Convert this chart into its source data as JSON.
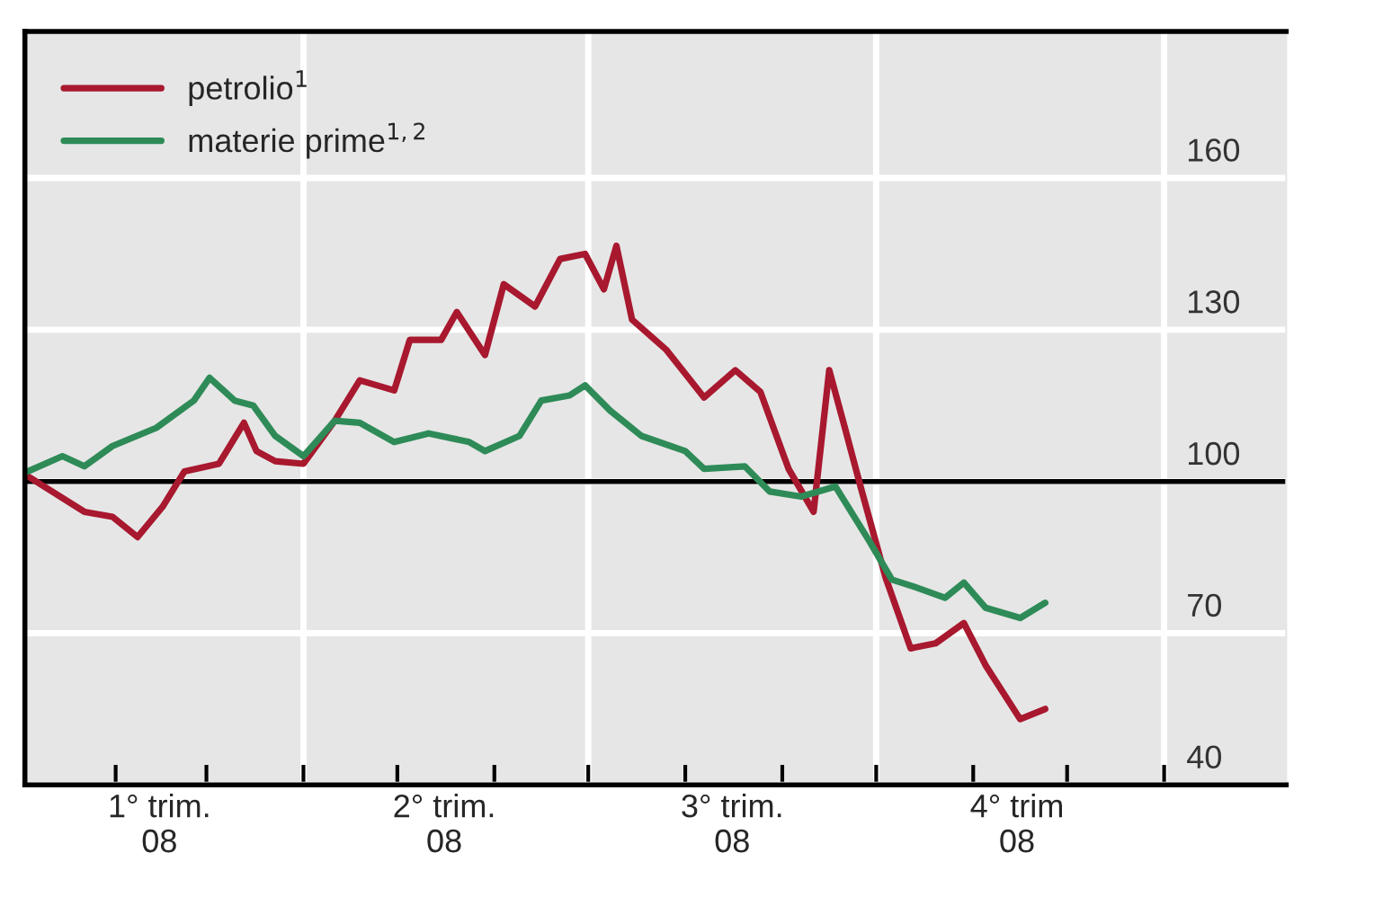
{
  "chart_data": {
    "type": "line",
    "series": [
      {
        "name": "petrolio$^{1}$",
        "color": "#a8182e",
        "x": [
          "2008-01-04",
          "2008-01-22",
          "2008-01-31",
          "2008-02-08",
          "2008-02-16",
          "2008-02-23",
          "2008-03-05",
          "2008-03-13",
          "2008-03-17",
          "2008-03-23",
          "2008-04-01",
          "2008-04-11",
          "2008-04-19",
          "2008-04-30",
          "2008-05-05",
          "2008-05-15",
          "2008-05-20",
          "2008-05-29",
          "2008-06-04",
          "2008-06-14",
          "2008-06-22",
          "2008-06-30",
          "2008-07-06",
          "2008-07-10",
          "2008-07-15",
          "2008-07-26",
          "2008-08-07",
          "2008-08-17",
          "2008-08-25",
          "2008-09-03",
          "2008-09-11",
          "2008-09-16",
          "2008-09-21",
          "2008-09-26",
          "2008-10-04",
          "2008-10-12",
          "2008-10-20",
          "2008-10-29",
          "2008-11-05",
          "2008-11-16",
          "2008-11-24"
        ],
        "values": [
          101,
          94,
          93,
          89,
          95,
          102,
          103.5,
          111.6,
          106,
          104,
          103.5,
          112,
          120,
          118,
          128,
          128,
          133.5,
          125,
          139,
          134.6,
          144,
          145,
          138,
          146.6,
          132,
          126,
          116.6,
          122,
          117.7,
          102.5,
          94,
          122,
          110.6,
          99,
          81,
          67,
          68,
          72,
          63.6,
          53,
          55
        ]
      },
      {
        "name": "materie prime$^{1,2}$",
        "color": "#2e8b57",
        "x": [
          "2008-01-04",
          "2008-01-15",
          "2008-01-22",
          "2008-01-31",
          "2008-02-14",
          "2008-02-26",
          "2008-03-02",
          "2008-03-10",
          "2008-03-16",
          "2008-03-23",
          "2008-04-01",
          "2008-04-11",
          "2008-04-19",
          "2008-04-30",
          "2008-05-11",
          "2008-05-24",
          "2008-05-29",
          "2008-06-09",
          "2008-06-16",
          "2008-06-25",
          "2008-06-30",
          "2008-07-08",
          "2008-07-18",
          "2008-08-01",
          "2008-08-07",
          "2008-08-20",
          "2008-08-28",
          "2008-09-07",
          "2008-09-18",
          "2008-09-29",
          "2008-10-06",
          "2008-10-14",
          "2008-10-23",
          "2008-10-29",
          "2008-11-05",
          "2008-11-16",
          "2008-11-24"
        ],
        "values": [
          102,
          105,
          103,
          107,
          110.6,
          116,
          120.5,
          116,
          115,
          109,
          105,
          112,
          111.6,
          107.8,
          109.5,
          107.8,
          106,
          109,
          116,
          117,
          119,
          114,
          109,
          106,
          102.5,
          103,
          98,
          97,
          99,
          88,
          80.6,
          79,
          77,
          80,
          75,
          73,
          76
        ]
      }
    ],
    "xlim": [
      "2008-01-03",
      "2009-02-09"
    ],
    "xticks": [
      {
        "value": "2008-02-01",
        "label": null
      },
      {
        "value": "2008-03-01",
        "label": null
      },
      {
        "value": "2008-04-01",
        "label": null
      },
      {
        "value": "2008-05-01",
        "label": null
      },
      {
        "value": "2008-06-01",
        "label": null
      },
      {
        "value": "2008-07-01",
        "label": null
      },
      {
        "value": "2008-08-01",
        "label": null
      },
      {
        "value": "2008-09-01",
        "label": null
      },
      {
        "value": "2008-10-01",
        "label": null
      },
      {
        "value": "2008-11-01",
        "label": null
      },
      {
        "value": "2008-12-01",
        "label": null
      },
      {
        "value": "2009-01-01",
        "label": null
      },
      {
        "value": "2008-02-15",
        "label": "1° trim.\n08"
      },
      {
        "value": "2008-05-16",
        "label": "2° trim.\n08"
      },
      {
        "value": "2008-08-16",
        "label": "3° trim.\n08"
      },
      {
        "value": "2008-11-15",
        "label": "4° trim\n08"
      }
    ],
    "ylim": [
      40,
      189
    ],
    "yticks": [
      40,
      70,
      100,
      130,
      160
    ],
    "ref_lines": [
      {
        "axis": "y",
        "value": 100,
        "color": "#000000"
      }
    ],
    "grid": true,
    "legend": "top left",
    "line_style": "solid",
    "marker": "none"
  }
}
